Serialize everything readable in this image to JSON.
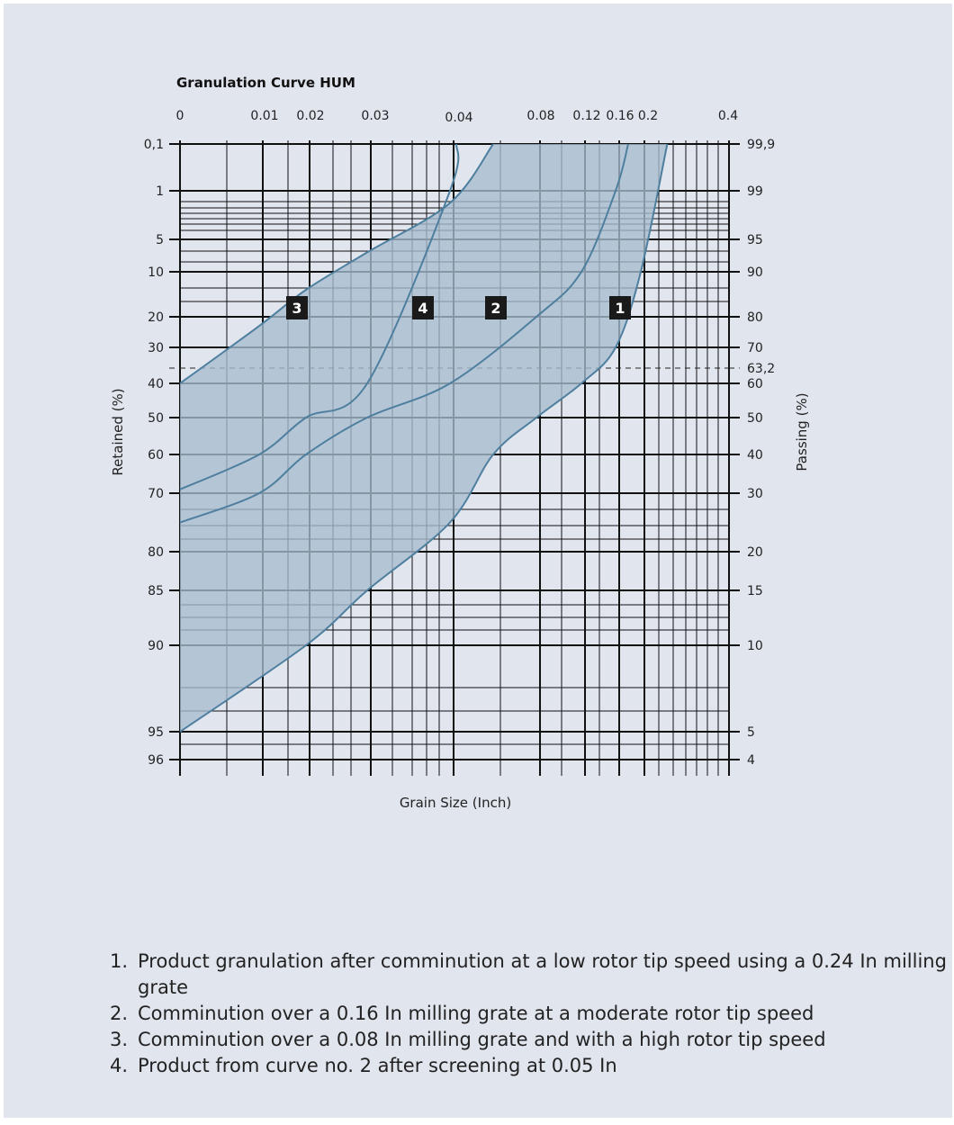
{
  "chart_data": {
    "type": "line",
    "title": "Granulation Curve HUM",
    "xlabel": "Grain Size (Inch)",
    "ylabel_left": "Retained (%)",
    "ylabel_right": "Passing (%)",
    "x_ticks": [
      "0",
      "0.01",
      "0.02",
      "0.03",
      "0.04",
      "0.08",
      "0.12",
      "0.16",
      "0.2",
      "0.4"
    ],
    "y_ticks_left": [
      "0,1",
      "1",
      "5",
      "10",
      "20",
      "30",
      "40",
      "50",
      "60",
      "70",
      "80",
      "85",
      "90",
      "95",
      "96"
    ],
    "y_ticks_right": [
      "99,9",
      "99",
      "95",
      "90",
      "80",
      "70",
      "63,2",
      "60",
      "50",
      "40",
      "30",
      "20",
      "15",
      "10",
      "5",
      "4"
    ],
    "reference_line": {
      "passing": 63.2,
      "retained": 36.8,
      "style": "dashed"
    },
    "series": [
      {
        "name": "1",
        "points": [
          [
            0,
            95
          ],
          [
            0.02,
            90
          ],
          [
            0.03,
            85
          ],
          [
            0.04,
            75
          ],
          [
            0.06,
            60
          ],
          [
            0.08,
            50
          ],
          [
            0.12,
            40
          ],
          [
            0.16,
            30
          ],
          [
            0.2,
            10
          ],
          [
            0.26,
            0.1
          ]
        ]
      },
      {
        "name": "2",
        "points": [
          [
            0,
            75
          ],
          [
            0.01,
            70
          ],
          [
            0.02,
            60
          ],
          [
            0.03,
            50
          ],
          [
            0.04,
            40
          ],
          [
            0.08,
            20
          ],
          [
            0.12,
            10
          ],
          [
            0.16,
            1
          ],
          [
            0.18,
            0.1
          ]
        ]
      },
      {
        "name": "3",
        "points": [
          [
            0,
            40
          ],
          [
            0.01,
            23
          ],
          [
            0.02,
            14
          ],
          [
            0.03,
            7
          ],
          [
            0.04,
            2
          ],
          [
            0.06,
            0.1
          ]
        ]
      },
      {
        "name": "4",
        "points": [
          [
            0,
            69
          ],
          [
            0.01,
            60
          ],
          [
            0.02,
            50
          ],
          [
            0.03,
            40
          ],
          [
            0.04,
            1
          ],
          [
            0.043,
            0.1
          ]
        ]
      }
    ],
    "shaded_band": {
      "between": [
        "3",
        "1"
      ]
    },
    "grid": true,
    "colors": {
      "line": "#4e7f9e",
      "band": "#a6bccf",
      "grid": "#111111",
      "background": "#e1e5ee"
    }
  },
  "notes": [
    {
      "num": "1.",
      "text": "Product granulation after comminution at a low rotor tip speed using a 0.24 In milling grate"
    },
    {
      "num": "2.",
      "text": "Comminution over a 0.16 In milling grate at a moderate rotor tip speed"
    },
    {
      "num": "3.",
      "text": "Comminution over a 0.08 In milling grate and with a high rotor tip speed"
    },
    {
      "num": "4.",
      "text": "Product from curve no. 2 after screening at 0.05 In"
    }
  ]
}
